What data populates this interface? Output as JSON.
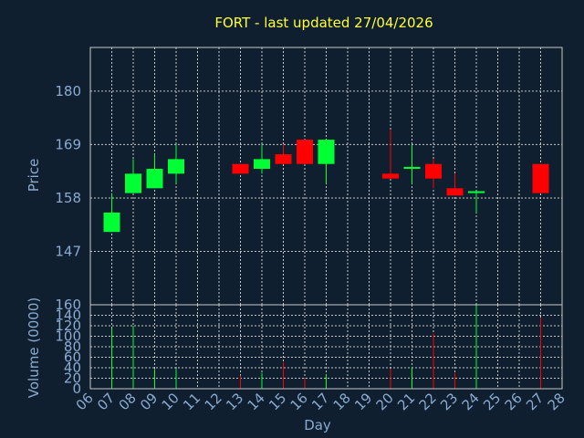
{
  "chart_data": [
    {
      "type": "candlestick",
      "title": "FORT - last updated 27/04/2026",
      "ylabel": "Price",
      "yticks": [
        147,
        158,
        169,
        180
      ],
      "ylim": [
        136,
        189
      ],
      "grid": true,
      "colors": {
        "up": "#00ff33",
        "down": "#ff0000",
        "background": "#0f1f30",
        "grid": "#c8c8c8",
        "text": "#8aaad0",
        "title": "#ffff33"
      },
      "series": [
        {
          "day": "07",
          "open": 151,
          "close": 155,
          "high": 159,
          "low": 151
        },
        {
          "day": "08",
          "open": 159,
          "close": 163,
          "high": 166,
          "low": 159
        },
        {
          "day": "09",
          "open": 160,
          "close": 164,
          "high": 167,
          "low": 160
        },
        {
          "day": "10",
          "open": 163,
          "close": 166,
          "high": 169,
          "low": 161
        },
        {
          "day": "13",
          "open": 165,
          "close": 163,
          "high": 165,
          "low": 163
        },
        {
          "day": "14",
          "open": 164,
          "close": 166,
          "high": 169,
          "low": 163
        },
        {
          "day": "15",
          "open": 167,
          "close": 165,
          "high": 169,
          "low": 165
        },
        {
          "day": "16",
          "open": 170,
          "close": 165,
          "high": 170,
          "low": 165
        },
        {
          "day": "17",
          "open": 165,
          "close": 170,
          "high": 170,
          "low": 161
        },
        {
          "day": "20",
          "open": 163,
          "close": 162,
          "high": 172,
          "low": 162
        },
        {
          "day": "21",
          "open": 164,
          "close": 164.4,
          "high": 169,
          "low": 161
        },
        {
          "day": "22",
          "open": 165,
          "close": 162,
          "high": 166,
          "low": 160
        },
        {
          "day": "23",
          "open": 160,
          "close": 158.5,
          "high": 163,
          "low": 158.5
        },
        {
          "day": "24",
          "open": 159,
          "close": 159.4,
          "high": 159.4,
          "low": 155
        },
        {
          "day": "27",
          "open": 165,
          "close": 159,
          "high": 165,
          "low": 159
        }
      ]
    },
    {
      "type": "bar",
      "ylabel": "Volume (0000)",
      "xlabel": "Day",
      "yticks": [
        0,
        20,
        40,
        60,
        80,
        100,
        120,
        140,
        160
      ],
      "ylim": [
        0,
        160
      ],
      "categories": [
        "06",
        "07",
        "08",
        "09",
        "10",
        "11",
        "12",
        "13",
        "14",
        "15",
        "16",
        "17",
        "18",
        "19",
        "20",
        "21",
        "22",
        "23",
        "24",
        "25",
        "26",
        "27",
        "28"
      ],
      "values": [
        {
          "day": "07",
          "volume": 115,
          "dir": "up"
        },
        {
          "day": "08",
          "volume": 120,
          "dir": "up"
        },
        {
          "day": "09",
          "volume": 38,
          "dir": "up"
        },
        {
          "day": "10",
          "volume": 38,
          "dir": "up"
        },
        {
          "day": "13",
          "volume": 25,
          "dir": "down"
        },
        {
          "day": "14",
          "volume": 30,
          "dir": "up"
        },
        {
          "day": "15",
          "volume": 50,
          "dir": "down"
        },
        {
          "day": "16",
          "volume": 20,
          "dir": "down"
        },
        {
          "day": "17",
          "volume": 28,
          "dir": "up"
        },
        {
          "day": "20",
          "volume": 38,
          "dir": "down"
        },
        {
          "day": "21",
          "volume": 42,
          "dir": "up"
        },
        {
          "day": "22",
          "volume": 105,
          "dir": "down"
        },
        {
          "day": "23",
          "volume": 30,
          "dir": "down"
        },
        {
          "day": "24",
          "volume": 160,
          "dir": "up"
        },
        {
          "day": "27",
          "volume": 135,
          "dir": "down"
        }
      ]
    }
  ]
}
